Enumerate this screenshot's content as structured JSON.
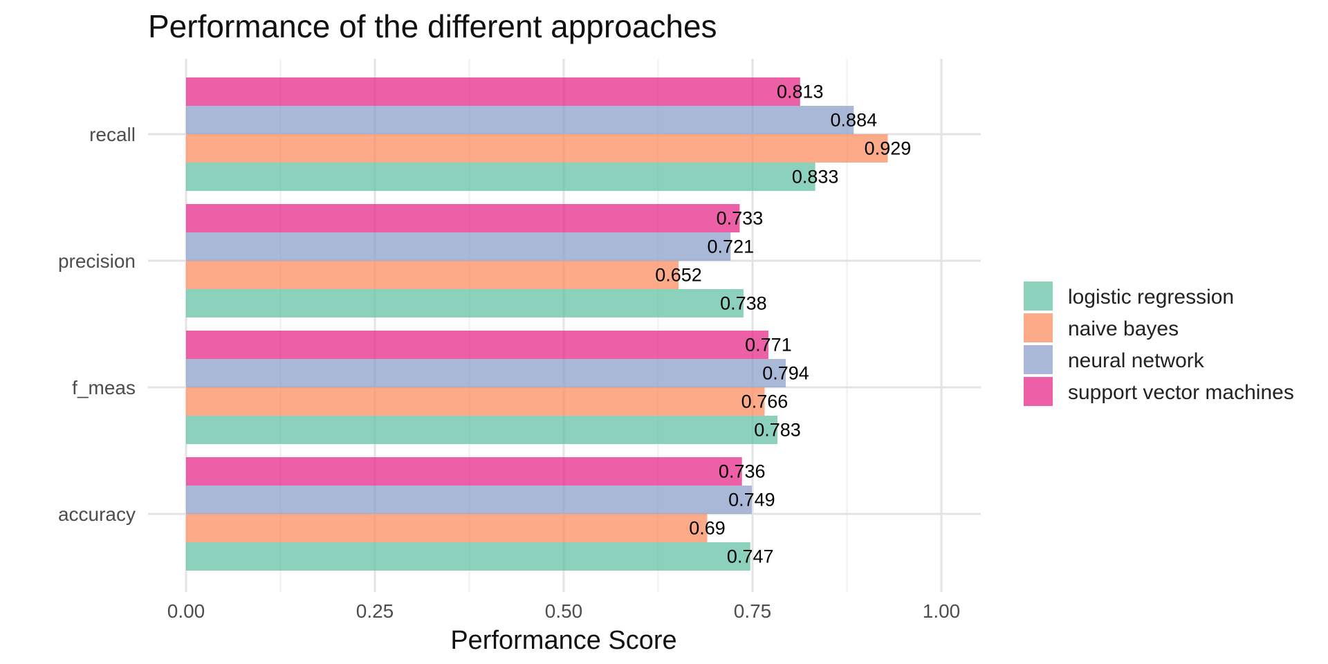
{
  "chart_data": {
    "type": "bar",
    "orientation": "horizontal",
    "title": "Performance of the different approaches",
    "xlabel": "Performance Score",
    "ylabel": "",
    "xlim": [
      0,
      1.05
    ],
    "x_ticks": [
      "0.00",
      "0.25",
      "0.50",
      "0.75",
      "1.00"
    ],
    "x_tick_values": [
      0,
      0.25,
      0.5,
      0.75,
      1.0
    ],
    "categories": [
      "recall",
      "precision",
      "f_meas",
      "accuracy"
    ],
    "series": [
      {
        "name": "logistic regression",
        "color": "#66c2a5",
        "values": [
          0.833,
          0.738,
          0.783,
          0.747
        ],
        "labels": [
          "0.833",
          "0.738",
          "0.783",
          "0.747"
        ]
      },
      {
        "name": "naive bayes",
        "color": "#fc8d62",
        "values": [
          0.929,
          0.652,
          0.766,
          0.69
        ],
        "labels": [
          "0.929",
          "0.652",
          "0.766",
          "0.69"
        ]
      },
      {
        "name": "neural network",
        "color": "#8da0cb",
        "values": [
          0.884,
          0.721,
          0.794,
          0.749
        ],
        "labels": [
          "0.884",
          "0.721",
          "0.794",
          "0.749"
        ]
      },
      {
        "name": "support vector machines",
        "color": "#e7298a",
        "values": [
          0.813,
          0.733,
          0.771,
          0.736
        ],
        "labels": [
          "0.813",
          "0.733",
          "0.771",
          "0.736"
        ]
      }
    ],
    "bar_opacity": 0.75,
    "grid": true,
    "legend_position": "right"
  }
}
